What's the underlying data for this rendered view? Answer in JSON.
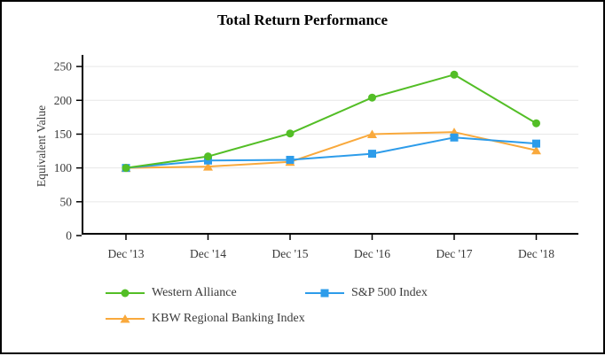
{
  "chart_data": {
    "type": "line",
    "title": "Total Return Performance",
    "ylabel": "Equivalent Value",
    "xlabel": "",
    "categories": [
      "Dec '13",
      "Dec '14",
      "Dec '15",
      "Dec '16",
      "Dec '17",
      "Dec '18"
    ],
    "series": [
      {
        "name": "Western Alliance",
        "color": "#53be26",
        "marker": "circle",
        "values": [
          100,
          117,
          151,
          204,
          238,
          166
        ]
      },
      {
        "name": "S&P 500 Index",
        "color": "#2d9cea",
        "marker": "square",
        "values": [
          100,
          111,
          112,
          121,
          145,
          136
        ]
      },
      {
        "name": "KBW Regional Banking Index",
        "color": "#f9a93c",
        "marker": "triangle",
        "values": [
          100,
          102,
          109,
          150,
          153,
          126
        ]
      }
    ],
    "yticks": [
      0,
      50,
      100,
      150,
      200,
      250
    ],
    "ylim": [
      0,
      250
    ],
    "grid": "horizontal",
    "gridline_color": "#e7e7e7",
    "axis_color": "#000000",
    "tick_label_color": "#3a3a3a",
    "legend_position": "bottom"
  }
}
